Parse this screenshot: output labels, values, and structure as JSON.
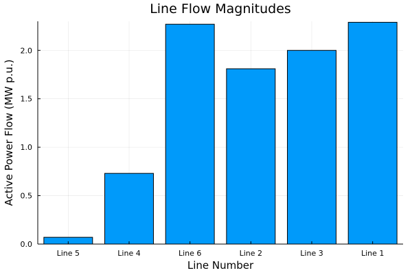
{
  "chart_data": {
    "type": "bar",
    "title": "Line Flow Magnitudes",
    "xlabel": "Line Number",
    "ylabel": "Active Power Flow (MW p.u.)",
    "categories": [
      "Line 5",
      "Line 4",
      "Line 6",
      "Line 2",
      "Line 3",
      "Line 1"
    ],
    "values": [
      0.07,
      0.73,
      2.27,
      1.81,
      2.0,
      2.29
    ],
    "ylim": [
      0,
      2.3
    ],
    "yticks": [
      {
        "value": 0,
        "label": "0.0"
      },
      {
        "value": 0.5,
        "label": "0.5"
      },
      {
        "value": 1.0,
        "label": "1.0"
      },
      {
        "value": 1.5,
        "label": "1.5"
      },
      {
        "value": 2.0,
        "label": "2.0"
      }
    ],
    "grid": true,
    "legend": "none",
    "bar_color": "#009AFA"
  }
}
